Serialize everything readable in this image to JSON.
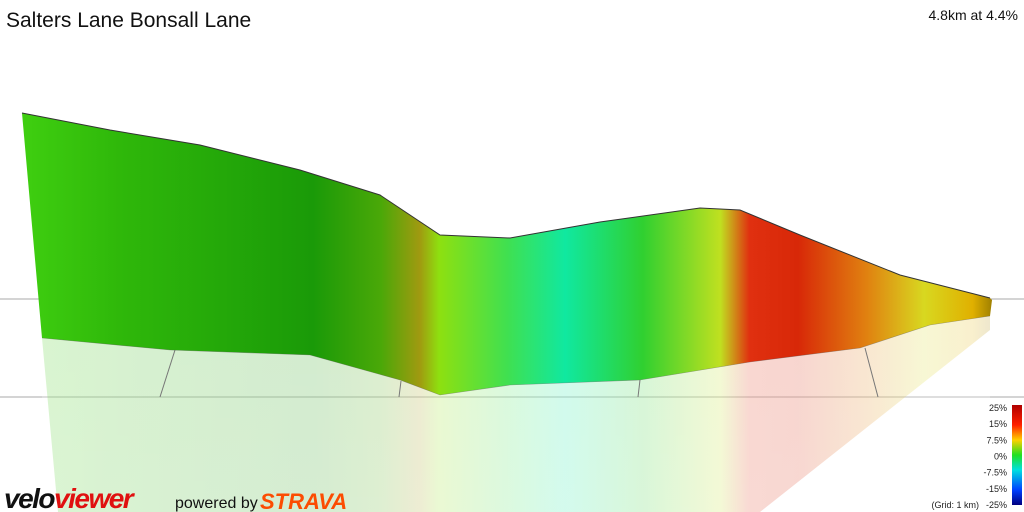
{
  "header": {
    "title": "Salters Lane Bonsall Lane",
    "summary": "4.8km at 4.4%"
  },
  "legend": {
    "labels": [
      "25%",
      "15%",
      "7.5%",
      "0%",
      "-7.5%",
      "-15%",
      "-25%"
    ],
    "grid_note": "(Grid: 1 km)"
  },
  "branding": {
    "logo_a": "velo",
    "logo_b": "viewer",
    "powered": "powered by",
    "strava": "STRAVA"
  }
}
